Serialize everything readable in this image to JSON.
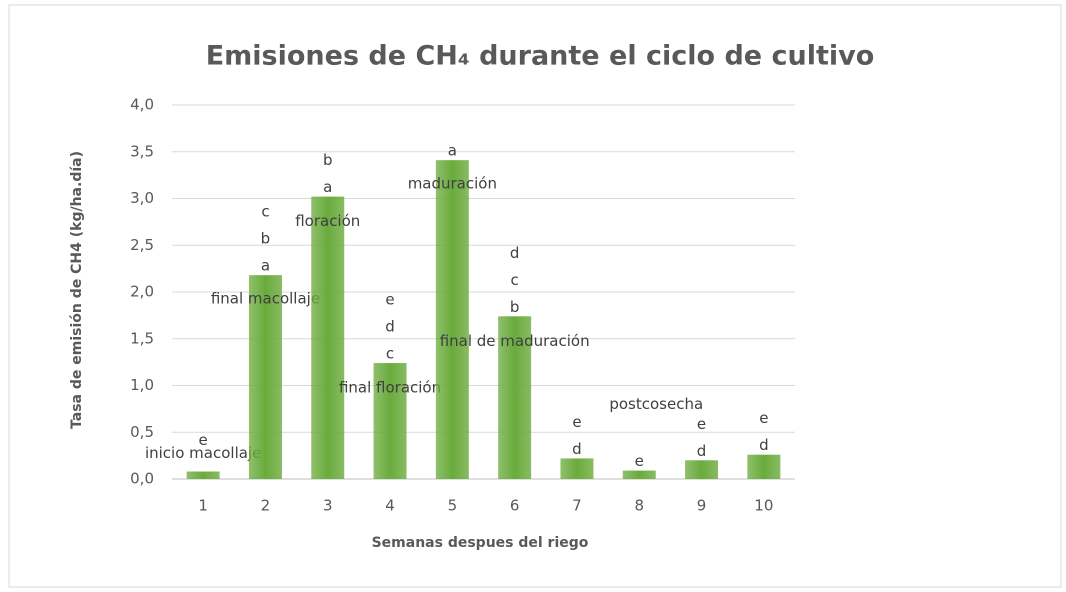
{
  "chart_data": {
    "type": "bar",
    "title": "Emisiones de CH₄ durante el ciclo de cultivo",
    "x_label": "Semanas despues del riego",
    "y_label": "Tasa de emisión de CH4 (kg/ha.día)",
    "categories": [
      "1",
      "2",
      "3",
      "4",
      "5",
      "6",
      "7",
      "8",
      "9",
      "10"
    ],
    "values": [
      0.08,
      2.18,
      3.02,
      1.24,
      3.41,
      1.74,
      0.22,
      0.09,
      0.2,
      0.26
    ],
    "letters": [
      [
        "e"
      ],
      [
        "a",
        "b",
        "c"
      ],
      [
        "a",
        "b"
      ],
      [
        "c",
        "d",
        "e"
      ],
      [
        "a"
      ],
      [
        "b",
        "c",
        "d"
      ],
      [
        "d",
        "e"
      ],
      [
        "e"
      ],
      [
        "d",
        "e"
      ],
      [
        "d",
        "e"
      ]
    ],
    "stages": [
      "inicio macollaje",
      "final macollaje",
      "floración",
      "final floración",
      "maduración",
      "final de maduración",
      null,
      "postcosecha",
      null,
      null
    ],
    "color": "#6aab3c",
    "ylim": [
      0,
      4
    ],
    "yticks": [
      {
        "value": 0,
        "label": "0,0"
      },
      {
        "value": 0.5,
        "label": "0,5"
      },
      {
        "value": 1,
        "label": "1,0"
      },
      {
        "value": 1.5,
        "label": "1,5"
      },
      {
        "value": 2,
        "label": "2,0"
      },
      {
        "value": 2.5,
        "label": "2,5"
      },
      {
        "value": 3,
        "label": "3,0"
      },
      {
        "value": 3.5,
        "label": "3,5"
      },
      {
        "value": 4,
        "label": "4,0"
      }
    ],
    "grid": true
  }
}
